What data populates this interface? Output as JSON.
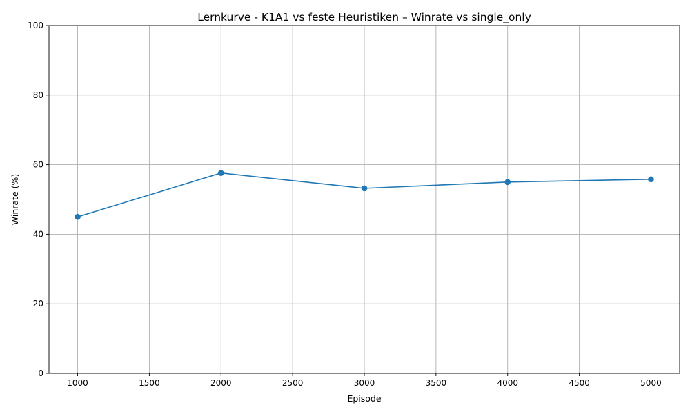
{
  "chart_data": {
    "type": "line",
    "title": "Lernkurve - K1A1 vs feste Heuristiken – Winrate vs single_only",
    "xlabel": "Episode",
    "ylabel": "Winrate (%)",
    "xlim": [
      800,
      5200
    ],
    "ylim": [
      0,
      100
    ],
    "xticks": [
      1000,
      1500,
      2000,
      2500,
      3000,
      3500,
      4000,
      4500,
      5000
    ],
    "yticks": [
      0,
      20,
      40,
      60,
      80,
      100
    ],
    "grid": true,
    "x": [
      1000,
      2000,
      3000,
      4000,
      5000
    ],
    "series": [
      {
        "values": [
          45.0,
          57.6,
          53.2,
          55.0,
          55.8
        ],
        "color": "#1f77b4",
        "marker": "circle"
      }
    ]
  }
}
